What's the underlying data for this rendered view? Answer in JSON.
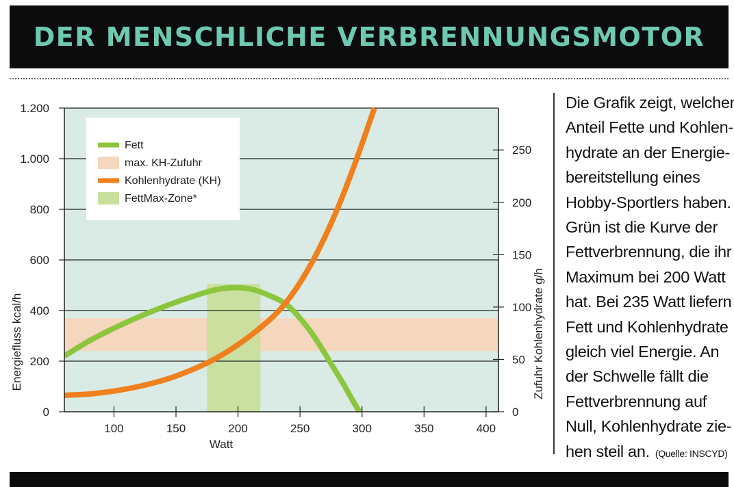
{
  "header": {
    "title": "DER MENSCHLICHE VERBRENNUNGSMOTOR"
  },
  "description": {
    "lines": [
      "Die Grafik zeigt, welchen",
      "Anteil Fette und Kohlen-",
      "hydrate an der Energie-",
      "bereitstellung eines",
      "Hobby-Sportlers haben.",
      "Grün ist die Kurve der",
      "Fettverbrennung, die ihr",
      "Maximum bei 200 Watt",
      "hat. Bei 235 Watt liefern",
      "Fett und Kohlenhydrate",
      "gleich viel Energie. An",
      "der Schwelle fällt die",
      "Fettverbrennung auf",
      "Null, Kohlenhydrate zie-",
      "hen steil an."
    ],
    "source": "(Quelle: INSCYD)"
  },
  "colors": {
    "plot_background": "#d9ebe4",
    "fat": "#8cc63f",
    "carb": "#f07f1d",
    "kh_band": "#f5d7bd",
    "fatmax_zone": "#c9df9c",
    "title": "#6dc9b1"
  },
  "chart_data": {
    "type": "line",
    "title": "",
    "xlabel": "Watt",
    "ylabel": "Energiefluss  kcal/h",
    "y2label": "Zufuhr Kohlenhydrate g/h",
    "xlim": [
      60,
      410
    ],
    "ylim": [
      0,
      1200
    ],
    "y2lim": [
      0,
      290
    ],
    "x_ticks": [
      100,
      150,
      200,
      250,
      300,
      350,
      400
    ],
    "y_ticks": [
      {
        "value": 0,
        "label": "0"
      },
      {
        "value": 200,
        "label": "200"
      },
      {
        "value": 400,
        "label": "400"
      },
      {
        "value": 600,
        "label": "600"
      },
      {
        "value": 800,
        "label": "800"
      },
      {
        "value": 1000,
        "label": "1.000"
      },
      {
        "value": 1200,
        "label": "1.200"
      }
    ],
    "y2_ticks": [
      0,
      50,
      100,
      150,
      200,
      250
    ],
    "grid": "horizontal",
    "legend_position": "top-left",
    "series": [
      {
        "name": "Fett",
        "color": "#8cc63f",
        "x": [
          60,
          80,
          100,
          120,
          140,
          160,
          180,
          195,
          210,
          225,
          240,
          255,
          265,
          275,
          285,
          293,
          298
        ],
        "y": [
          220,
          280,
          330,
          375,
          415,
          450,
          480,
          490,
          485,
          460,
          420,
          340,
          270,
          190,
          110,
          40,
          0
        ]
      },
      {
        "name": "Kohlenhydrate (KH)",
        "color": "#f07f1d",
        "x": [
          60,
          80,
          100,
          120,
          140,
          160,
          180,
          200,
          220,
          235,
          250,
          265,
          280,
          295,
          310
        ],
        "y": [
          65,
          70,
          82,
          100,
          125,
          160,
          205,
          265,
          340,
          410,
          510,
          640,
          800,
          990,
          1200
        ]
      }
    ],
    "bands": [
      {
        "name": "max. KH-Zufuhr",
        "color": "#f5d7bd",
        "axis": "y",
        "from": 240,
        "to": 370
      },
      {
        "name": "FettMax-Zone*",
        "color": "#c9df9c",
        "axis": "x",
        "from": 175,
        "to": 218,
        "y_to": 505
      }
    ]
  }
}
